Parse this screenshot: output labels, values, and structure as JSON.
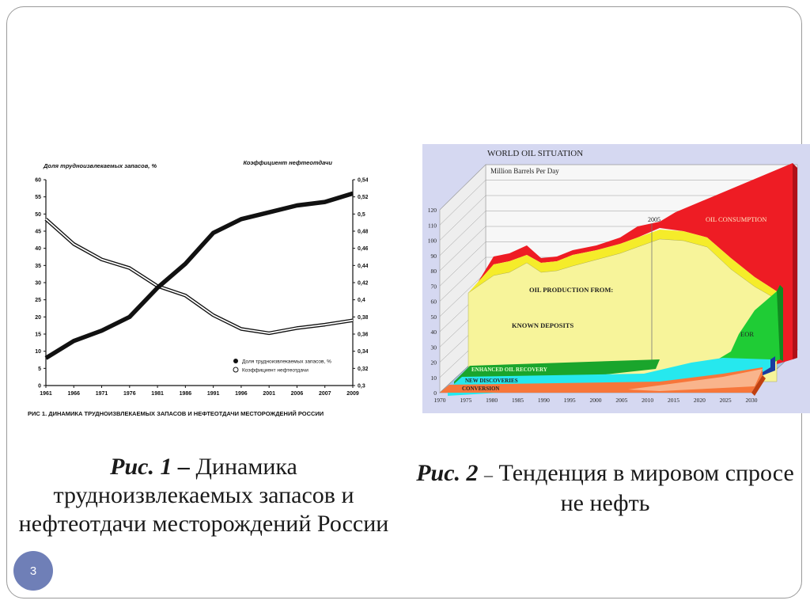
{
  "slide": {
    "page_number": "3"
  },
  "captions": [
    {
      "label": "Рис. 1 –",
      "text": "Динамика трудноизвлекаемых запасов и нефтеотдачи месторождений России"
    },
    {
      "label": "Рис. 2",
      "dash": "–",
      "text": "Тенденция в мировом спросе не нефть"
    }
  ],
  "chart_data": [
    {
      "type": "line",
      "title": "РИС 1. ДИНАМИКА ТРУДНОИЗВЛЕКАЕМЫХ ЗАПАСОВ И НЕФТЕОТДАЧИ МЕСТОРОЖДЕНИЙ РОССИИ",
      "ylabel_left": "Доля трудноизвлекаемых запасов, %",
      "ylabel_right": "Коэффициент нефтеотдачи",
      "categories": [
        "1961",
        "1966",
        "1971",
        "1976",
        "1981",
        "1986",
        "1991",
        "1996",
        "2001",
        "2006",
        "2007",
        "2009"
      ],
      "ylim_left": [
        0,
        60
      ],
      "yticks_left": [
        "0",
        "5",
        "10",
        "15",
        "20",
        "25",
        "30",
        "35",
        "40",
        "45",
        "50",
        "55",
        "60"
      ],
      "ylim_right": [
        0.3,
        0.54
      ],
      "yticks_right": [
        "0,3",
        "0,32",
        "0,34",
        "0,36",
        "0,38",
        "0,4",
        "0,42",
        "0,44",
        "0,46",
        "0,48",
        "0,5",
        "0,52",
        "0,54"
      ],
      "legend": [
        "Доля трудноизвлекаемых запасов, %",
        "Коэффициент нефтеотдачи"
      ],
      "legend_position": "bottom-right",
      "series": [
        {
          "name": "Доля трудноизвлекаемых запасов, %",
          "axis": "left",
          "values": [
            8,
            13,
            16,
            20,
            28.5,
            35.5,
            44.5,
            48.5,
            50.5,
            52.5,
            53.5,
            56
          ]
        },
        {
          "name": "Коэффициент нефтеотдачи",
          "axis": "right",
          "values": [
            0.494,
            0.465,
            0.447,
            0.437,
            0.416,
            0.405,
            0.382,
            0.366,
            0.361,
            0.367,
            0.371,
            0.376
          ]
        }
      ]
    },
    {
      "type": "area",
      "title": "WORLD OIL SITUATION",
      "ylabel": "Million Barrels Per Day",
      "x": [
        "1970",
        "1975",
        "1980",
        "1985",
        "1990",
        "1995",
        "2000",
        "2005",
        "2010",
        "2015",
        "2020",
        "2025",
        "2030"
      ],
      "ylim": [
        0,
        120
      ],
      "yticks": [
        "0",
        "10",
        "20",
        "30",
        "40",
        "50",
        "60",
        "70",
        "80",
        "90",
        "100",
        "110",
        "120"
      ],
      "marker": "2005",
      "labels": {
        "consumption": "OIL CONSUMPTION",
        "production": "OIL PRODUCTION FROM:",
        "known": "KNOWN DEPOSITS",
        "eor": "EOR",
        "enhanced": "ENHANCED OIL RECOVERY",
        "discoveries": "NEW DISCOVERIES",
        "conversion": "CONVERSION"
      },
      "colors": {
        "consumption": "#ee1c24",
        "production_band": "#f5ec2a",
        "known": "#f7f49a",
        "eor": "#1fcc35",
        "discoveries": "#26e8ee",
        "conversion": "#f7763a",
        "floor": "#9ec7ef"
      }
    }
  ]
}
